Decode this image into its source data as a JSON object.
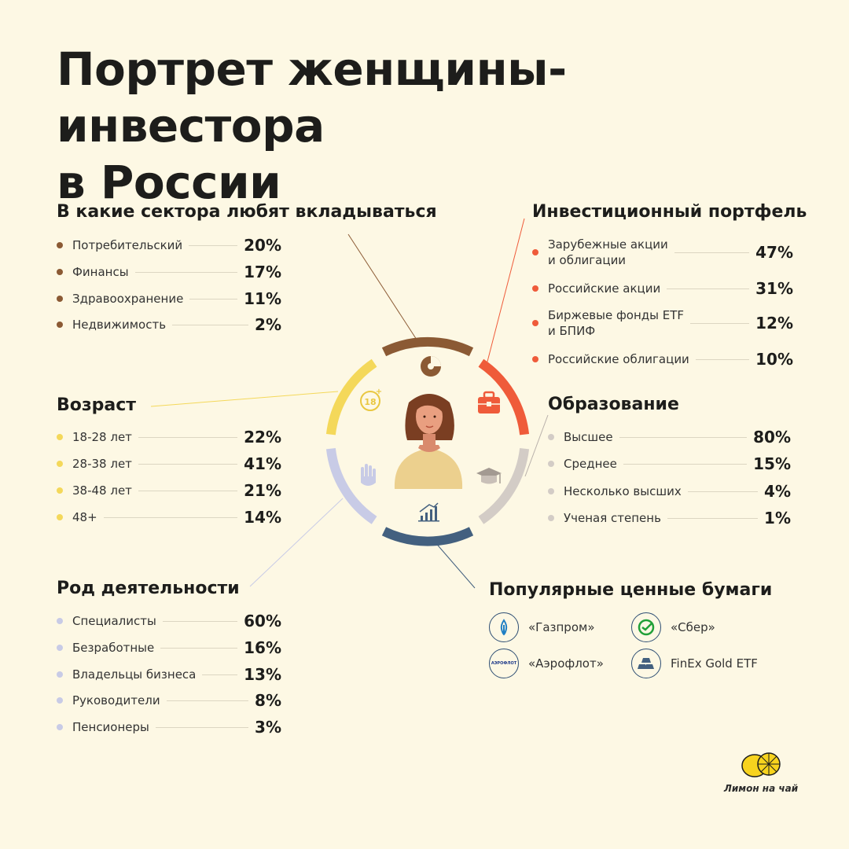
{
  "title": {
    "line1": "Портрет женщины-инвестора",
    "line2": "в России"
  },
  "colors": {
    "background": "#fdf8e4",
    "sectors": "#8b5a34",
    "portfolio": "#ef5b3a",
    "age": "#f4d85a",
    "activity": "#c8cbe6",
    "education": "#d3ccc6",
    "stocks": "#43607f"
  },
  "sectors": {
    "heading": "В какие сектора любят вкладываться",
    "items": [
      {
        "label": "Потребительский",
        "value": "20%"
      },
      {
        "label": "Финансы",
        "value": "17%"
      },
      {
        "label": "Здравоохранение",
        "value": "11%"
      },
      {
        "label": "Недвижимость",
        "value": "2%"
      }
    ]
  },
  "portfolio": {
    "heading": "Инвестиционный портфель",
    "items": [
      {
        "label1": "Зарубежные акции",
        "label2": "и облигации",
        "value": "47%"
      },
      {
        "label1": "Российские акции",
        "label2": "",
        "value": "31%"
      },
      {
        "label1": "Биржевые фонды ETF",
        "label2": "и БПИФ",
        "value": "12%"
      },
      {
        "label1": "Российские облигации",
        "label2": "",
        "value": "10%"
      }
    ]
  },
  "age": {
    "heading": "Возраст",
    "items": [
      {
        "label": "18-28 лет",
        "value": "22%"
      },
      {
        "label": "28-38 лет",
        "value": "41%"
      },
      {
        "label": "38-48 лет",
        "value": "21%"
      },
      {
        "label": "48+",
        "value": "14%"
      }
    ]
  },
  "education": {
    "heading": "Образование",
    "items": [
      {
        "label": "Высшее",
        "value": "80%"
      },
      {
        "label": "Среднее",
        "value": "15%"
      },
      {
        "label": "Несколько высших",
        "value": "4%"
      },
      {
        "label": "Ученая степень",
        "value": "1%"
      }
    ]
  },
  "activity": {
    "heading": "Род деятельности",
    "items": [
      {
        "label": "Специалисты",
        "value": "60%"
      },
      {
        "label": "Безработные",
        "value": "16%"
      },
      {
        "label": "Владельцы бизнеса",
        "value": "13%"
      },
      {
        "label": "Руководители",
        "value": "8%"
      },
      {
        "label": "Пенсионеры",
        "value": "3%"
      }
    ]
  },
  "stocks": {
    "heading": "Популярные ценные бумаги",
    "items": [
      {
        "label": "«Газпром»",
        "icon": "gazprom-flame-icon"
      },
      {
        "label": "«Сбер»",
        "icon": "sber-check-icon"
      },
      {
        "label": "«Аэрофлот»",
        "icon": "aeroflot-wordmark-icon"
      },
      {
        "label": "FinEx Gold ETF",
        "icon": "gold-bars-icon"
      }
    ]
  },
  "center": {
    "age_badge": "18+",
    "aeroflot_mark": "АЭРОФЛОТ",
    "icons": [
      "pie-chart-icon",
      "briefcase-icon",
      "graduation-cap-icon",
      "bar-chart-icon",
      "hand-icon",
      "age-18-icon",
      "woman-avatar"
    ]
  },
  "brand": {
    "name": "Лимон на чай"
  }
}
